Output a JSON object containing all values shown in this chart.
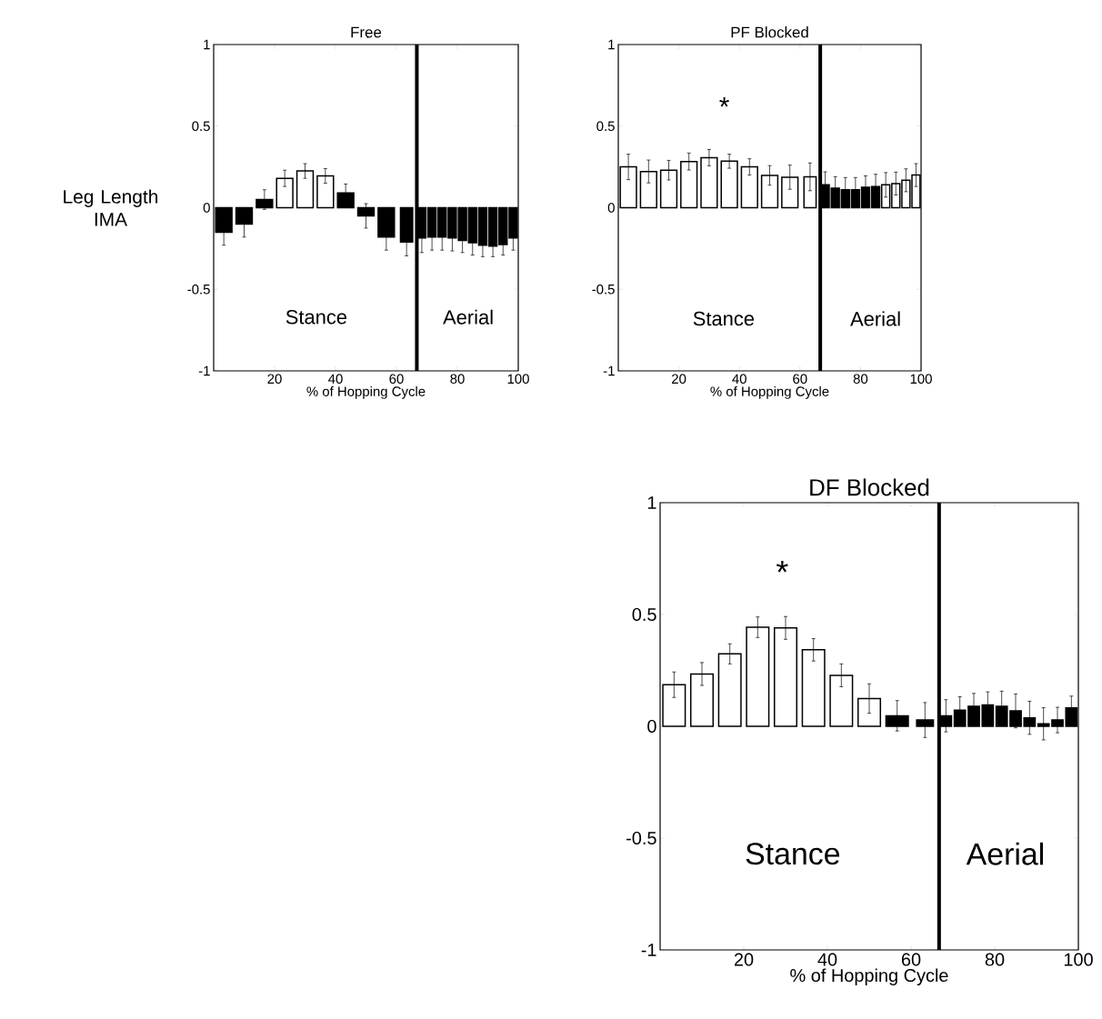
{
  "chart_data": [
    {
      "type": "bar",
      "title": "Free",
      "xlabel": "% of Hopping Cycle",
      "ylabel": "Leg Length IMA",
      "x": [
        3.33,
        10,
        16.67,
        23.33,
        30,
        36.67,
        43.33,
        50,
        56.67,
        63.33,
        68.33,
        71.67,
        75,
        78.33,
        81.67,
        85,
        88.33,
        91.67,
        95,
        98.33
      ],
      "values": [
        -0.15,
        -0.1,
        0.05,
        0.18,
        0.225,
        0.195,
        0.09,
        -0.05,
        -0.18,
        -0.21,
        -0.185,
        -0.18,
        -0.18,
        -0.185,
        -0.2,
        -0.215,
        -0.23,
        -0.235,
        -0.225,
        -0.185
      ],
      "errors": [
        0.08,
        0.08,
        0.06,
        0.05,
        0.045,
        0.045,
        0.055,
        0.075,
        0.08,
        0.085,
        0.09,
        0.08,
        0.08,
        0.08,
        0.075,
        0.075,
        0.07,
        0.065,
        0.065,
        0.075
      ],
      "colors": [
        "#000000",
        "#000000",
        "#000000",
        "#ffffff",
        "#ffffff",
        "#ffffff",
        "#000000",
        "#000000",
        "#000000",
        "#000000",
        "#000000",
        "#000000",
        "#000000",
        "#000000",
        "#000000",
        "#000000",
        "#000000",
        "#000000",
        "#000000",
        "#000000"
      ],
      "xlim": [
        0,
        100
      ],
      "ylim": [
        -1,
        1
      ],
      "xticks": [
        20,
        40,
        60,
        80,
        100
      ],
      "yticks": [
        -1,
        -0.5,
        0,
        0.5,
        1
      ],
      "ref_lines": [
        {
          "axis": "x",
          "value": 66.7,
          "color": "#000000"
        }
      ],
      "annotations": [
        "Stance",
        "Aerial"
      ]
    },
    {
      "type": "bar",
      "title": "PF Blocked",
      "xlabel": "% of Hopping Cycle",
      "x": [
        3.33,
        10,
        16.67,
        23.33,
        30,
        36.67,
        43.33,
        50,
        56.67,
        63.33,
        68.33,
        71.67,
        75,
        78.33,
        81.67,
        85,
        88.33,
        91.67,
        95,
        98.33
      ],
      "values": [
        0.25,
        0.222,
        0.23,
        0.283,
        0.307,
        0.285,
        0.25,
        0.198,
        0.187,
        0.189,
        0.14,
        0.12,
        0.11,
        0.11,
        0.125,
        0.13,
        0.14,
        0.148,
        0.168,
        0.2
      ],
      "errors": [
        0.078,
        0.07,
        0.06,
        0.052,
        0.05,
        0.043,
        0.05,
        0.06,
        0.074,
        0.085,
        0.08,
        0.07,
        0.075,
        0.075,
        0.07,
        0.075,
        0.075,
        0.07,
        0.07,
        0.07
      ],
      "colors": [
        "#ffffff",
        "#ffffff",
        "#ffffff",
        "#ffffff",
        "#ffffff",
        "#ffffff",
        "#ffffff",
        "#ffffff",
        "#ffffff",
        "#ffffff",
        "#000000",
        "#000000",
        "#000000",
        "#000000",
        "#000000",
        "#000000",
        "#ffffff",
        "#ffffff",
        "#ffffff",
        "#ffffff"
      ],
      "xlim": [
        0,
        100
      ],
      "ylim": [
        -1,
        1
      ],
      "xticks": [
        20,
        40,
        60,
        80,
        100
      ],
      "yticks": [
        -1,
        -0.5,
        0,
        0.5,
        1
      ],
      "ref_lines": [
        {
          "axis": "x",
          "value": 66.7,
          "color": "#000000"
        }
      ],
      "annotations": [
        "*",
        "Stance",
        "Aerial"
      ]
    },
    {
      "type": "bar",
      "title": "DF Blocked",
      "xlabel": "% of Hopping Cycle",
      "x": [
        3.33,
        10,
        16.67,
        23.33,
        30,
        36.67,
        43.33,
        50,
        56.67,
        63.33,
        68.33,
        71.67,
        75,
        78.33,
        81.67,
        85,
        88.33,
        91.67,
        95,
        98.33
      ],
      "values": [
        0.186,
        0.234,
        0.324,
        0.443,
        0.44,
        0.342,
        0.228,
        0.124,
        0.047,
        0.028,
        0.047,
        0.072,
        0.089,
        0.096,
        0.089,
        0.069,
        0.038,
        0.011,
        0.028,
        0.082
      ],
      "errors": [
        0.057,
        0.051,
        0.045,
        0.046,
        0.051,
        0.05,
        0.051,
        0.066,
        0.068,
        0.078,
        0.072,
        0.06,
        0.058,
        0.058,
        0.068,
        0.076,
        0.074,
        0.072,
        0.057,
        0.053
      ],
      "colors": [
        "#ffffff",
        "#ffffff",
        "#ffffff",
        "#ffffff",
        "#ffffff",
        "#ffffff",
        "#ffffff",
        "#ffffff",
        "#000000",
        "#000000",
        "#000000",
        "#000000",
        "#000000",
        "#000000",
        "#000000",
        "#000000",
        "#000000",
        "#000000",
        "#000000",
        "#000000"
      ],
      "xlim": [
        0,
        100
      ],
      "ylim": [
        -1,
        1
      ],
      "xticks": [
        20,
        40,
        60,
        80,
        100
      ],
      "yticks": [
        -1,
        -0.5,
        0,
        0.5,
        1
      ],
      "ref_lines": [
        {
          "axis": "x",
          "value": 66.7,
          "color": "#000000"
        }
      ],
      "annotations": [
        "*",
        "Stance",
        "Aerial"
      ]
    }
  ]
}
